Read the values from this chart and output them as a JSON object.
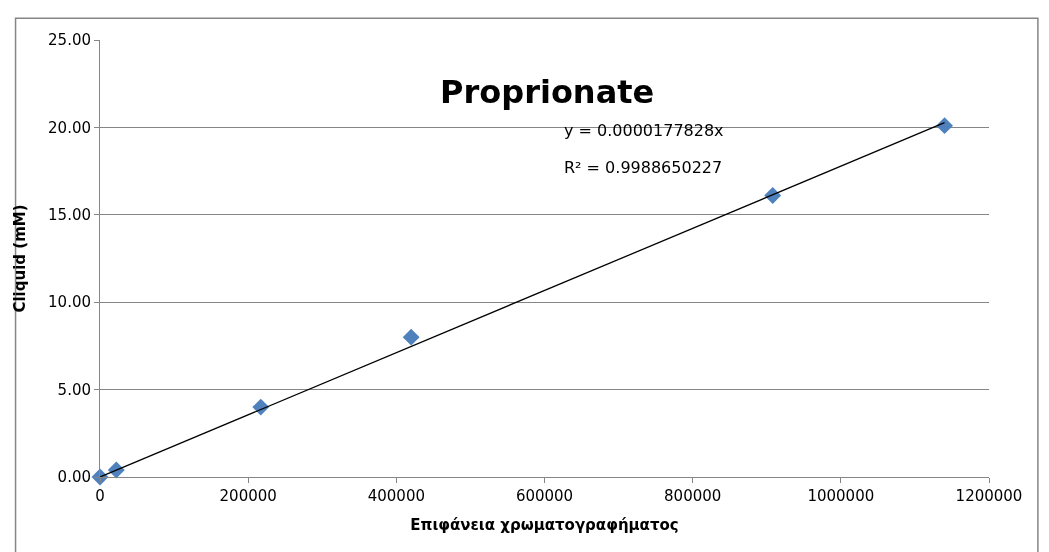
{
  "chart_data": {
    "type": "scatter",
    "title": "Proprionate",
    "xlabel": "Επιφάνεια χρωματογραφήματος",
    "ylabel": "Cliquid (mM)",
    "x": [
      0,
      22000,
      217000,
      420000,
      908000,
      1140000
    ],
    "series": [
      {
        "color": "#4f81bd",
        "marker": "diamond",
        "values": [
          0,
          0.4,
          4.0,
          8.0,
          16.1,
          20.1
        ]
      },
      {
        "type": "line",
        "color": "#000000",
        "marker": "none",
        "x": [
          0,
          1140000
        ],
        "values": [
          0,
          20.27
        ]
      }
    ],
    "annotations": [
      "y = 0.0000177828x",
      "R² = 0.9988650227"
    ],
    "xlim": [
      0,
      1200000
    ],
    "xticks": [
      0,
      200000,
      400000,
      600000,
      800000,
      1000000,
      1200000
    ],
    "ylim": [
      0,
      25
    ],
    "yticks": [
      {
        "value": 0,
        "label": "0.00"
      },
      {
        "value": 5,
        "label": "5.00"
      },
      {
        "value": 10,
        "label": "10.00"
      },
      {
        "value": 15,
        "label": "15.00"
      },
      {
        "value": 20,
        "label": "20.00"
      },
      {
        "value": 25,
        "label": "25.00"
      }
    ],
    "grid": "y",
    "legend": false
  }
}
